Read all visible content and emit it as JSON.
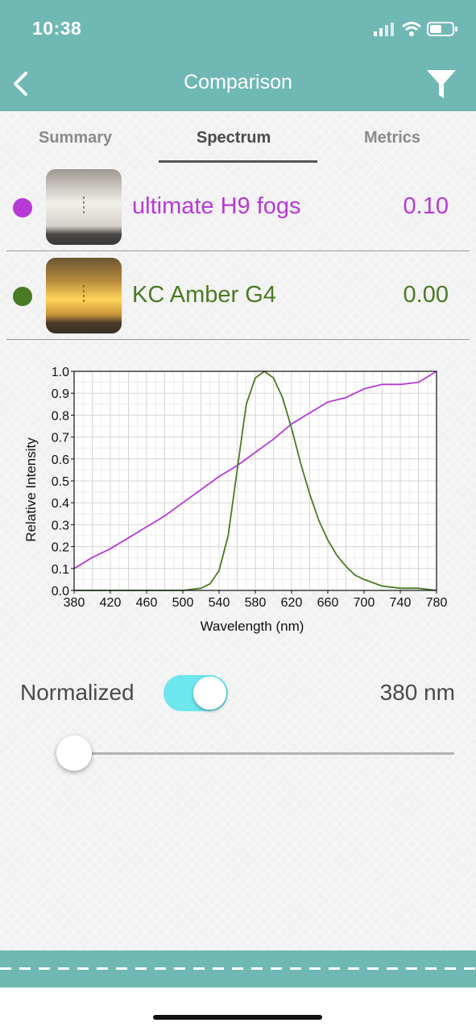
{
  "status_bar": {
    "time": "10:38"
  },
  "nav": {
    "title": "Comparison"
  },
  "tabs": [
    {
      "label": "Summary",
      "active": false
    },
    {
      "label": "Spectrum",
      "active": true
    },
    {
      "label": "Metrics",
      "active": false
    }
  ],
  "lights": [
    {
      "name": "ultimate H9 fogs",
      "value": "0.10",
      "color": "#b73ad6"
    },
    {
      "name": "KC Amber G4",
      "value": "0.00",
      "color": "#4a7a23"
    }
  ],
  "chart_data": {
    "type": "line",
    "xlabel": "Wavelength (nm)",
    "ylabel": "Relative Intensity",
    "xlim": [
      380,
      780
    ],
    "ylim": [
      0,
      1.0
    ],
    "xticks": [
      "380",
      "420",
      "460",
      "500",
      "540",
      "580",
      "620",
      "660",
      "700",
      "740",
      "780"
    ],
    "yticks": [
      "0.0",
      "0.1",
      "0.2",
      "0.3",
      "0.4",
      "0.5",
      "0.6",
      "0.7",
      "0.8",
      "0.9",
      "1.0"
    ],
    "grid": true,
    "series": [
      {
        "name": "ultimate H9 fogs",
        "color": "#b73ad6",
        "x": [
          380,
          400,
          420,
          440,
          460,
          480,
          500,
          520,
          540,
          560,
          580,
          600,
          620,
          640,
          660,
          680,
          700,
          720,
          740,
          760,
          780
        ],
        "y": [
          0.1,
          0.15,
          0.19,
          0.24,
          0.29,
          0.34,
          0.4,
          0.46,
          0.52,
          0.57,
          0.63,
          0.69,
          0.76,
          0.81,
          0.86,
          0.88,
          0.92,
          0.94,
          0.94,
          0.95,
          1.0
        ]
      },
      {
        "name": "KC Amber G4",
        "color": "#4a7a23",
        "x": [
          380,
          500,
          520,
          530,
          540,
          550,
          560,
          570,
          580,
          590,
          600,
          610,
          620,
          630,
          640,
          650,
          660,
          670,
          680,
          690,
          700,
          720,
          740,
          760,
          780
        ],
        "y": [
          0.0,
          0.0,
          0.01,
          0.03,
          0.09,
          0.25,
          0.55,
          0.85,
          0.97,
          1.0,
          0.97,
          0.88,
          0.74,
          0.58,
          0.44,
          0.32,
          0.23,
          0.16,
          0.11,
          0.07,
          0.05,
          0.02,
          0.01,
          0.01,
          0.0
        ]
      }
    ]
  },
  "controls": {
    "normalized_label": "Normalized",
    "normalized_on": true,
    "wavelength_value": "380 nm",
    "slider_fraction": 0.0
  }
}
